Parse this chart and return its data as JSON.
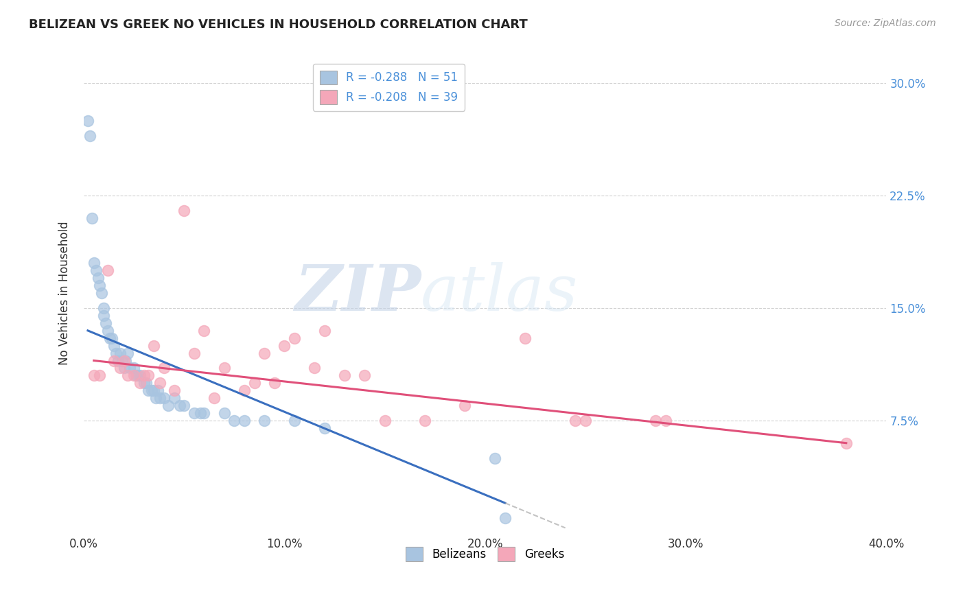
{
  "title": "BELIZEAN VS GREEK NO VEHICLES IN HOUSEHOLD CORRELATION CHART",
  "source": "Source: ZipAtlas.com",
  "ylabel": "No Vehicles in Household",
  "x_tick_labels": [
    "0.0%",
    "10.0%",
    "20.0%",
    "30.0%",
    "40.0%"
  ],
  "x_tick_values": [
    0.0,
    10.0,
    20.0,
    30.0,
    40.0
  ],
  "y_tick_labels_right": [
    "7.5%",
    "15.0%",
    "22.5%",
    "30.0%"
  ],
  "y_tick_values": [
    7.5,
    15.0,
    22.5,
    30.0
  ],
  "xlim": [
    0.0,
    40.0
  ],
  "ylim": [
    0.0,
    32.0
  ],
  "belizean_R": -0.288,
  "belizean_N": 51,
  "greek_R": -0.208,
  "greek_N": 39,
  "belizean_color": "#a8c4e0",
  "greek_color": "#f4a7b9",
  "belizean_line_color": "#3a6fbf",
  "greek_line_color": "#e0507a",
  "watermark_zip": "ZIP",
  "watermark_atlas": "atlas",
  "belizean_x": [
    0.2,
    0.3,
    0.4,
    0.5,
    0.6,
    0.7,
    0.8,
    0.9,
    1.0,
    1.0,
    1.1,
    1.2,
    1.3,
    1.4,
    1.5,
    1.6,
    1.7,
    1.8,
    1.9,
    2.0,
    2.1,
    2.2,
    2.3,
    2.5,
    2.6,
    2.7,
    2.8,
    3.0,
    3.1,
    3.2,
    3.4,
    3.5,
    3.6,
    3.7,
    3.8,
    4.0,
    4.2,
    4.5,
    4.8,
    5.0,
    5.5,
    5.8,
    6.0,
    7.0,
    7.5,
    8.0,
    9.0,
    10.5,
    12.0,
    20.5,
    21.0
  ],
  "belizean_y": [
    27.5,
    26.5,
    21.0,
    18.0,
    17.5,
    17.0,
    16.5,
    16.0,
    15.0,
    14.5,
    14.0,
    13.5,
    13.0,
    13.0,
    12.5,
    12.0,
    11.5,
    12.0,
    11.5,
    11.0,
    11.5,
    12.0,
    11.0,
    11.0,
    10.5,
    10.5,
    10.5,
    10.0,
    10.0,
    9.5,
    9.5,
    9.5,
    9.0,
    9.5,
    9.0,
    9.0,
    8.5,
    9.0,
    8.5,
    8.5,
    8.0,
    8.0,
    8.0,
    8.0,
    7.5,
    7.5,
    7.5,
    7.5,
    7.0,
    5.0,
    1.0
  ],
  "greek_x": [
    0.5,
    0.8,
    1.2,
    1.5,
    1.8,
    2.0,
    2.2,
    2.5,
    2.8,
    3.0,
    3.2,
    3.5,
    3.8,
    4.0,
    4.5,
    5.0,
    5.5,
    6.0,
    6.5,
    7.0,
    8.0,
    8.5,
    9.0,
    9.5,
    10.0,
    10.5,
    11.5,
    12.0,
    13.0,
    14.0,
    15.0,
    17.0,
    19.0,
    22.0,
    24.5,
    25.0,
    28.5,
    29.0,
    38.0
  ],
  "greek_y": [
    10.5,
    10.5,
    17.5,
    11.5,
    11.0,
    11.5,
    10.5,
    10.5,
    10.0,
    10.5,
    10.5,
    12.5,
    10.0,
    11.0,
    9.5,
    21.5,
    12.0,
    13.5,
    9.0,
    11.0,
    9.5,
    10.0,
    12.0,
    10.0,
    12.5,
    13.0,
    11.0,
    13.5,
    10.5,
    10.5,
    7.5,
    7.5,
    8.5,
    13.0,
    7.5,
    7.5,
    7.5,
    7.5,
    6.0
  ],
  "bel_line_x0": 0.2,
  "bel_line_x1": 21.0,
  "bel_line_y0": 13.5,
  "bel_line_y1": 2.0,
  "bel_dash_x0": 21.0,
  "bel_dash_x1": 24.0,
  "grk_line_x0": 0.5,
  "grk_line_x1": 38.0,
  "grk_line_y0": 11.5,
  "grk_line_y1": 6.0
}
